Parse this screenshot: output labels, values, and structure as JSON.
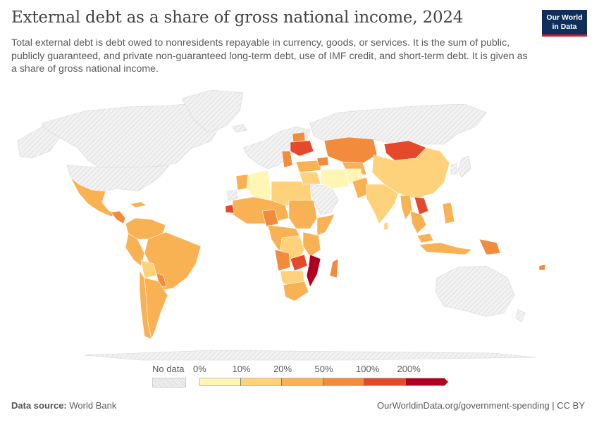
{
  "header": {
    "title": "External debt as a share of gross national income, 2024",
    "subtitle": "Total external debt is debt owed to nonresidents repayable in currency, goods, or services. It is the sum of public, publicly guaranteed, and private non-guaranteed long-term debt, use of IMF credit, and short-term debt. It is given as a share of gross national income."
  },
  "logo": {
    "line1": "Our World",
    "line2": "in Data"
  },
  "legend": {
    "no_data_label": "No data",
    "bins": [
      {
        "label": "0%",
        "color": "#fff5b4"
      },
      {
        "label": "10%",
        "color": "#fdd27a"
      },
      {
        "label": "20%",
        "color": "#f9b253"
      },
      {
        "label": "50%",
        "color": "#f38b3c"
      },
      {
        "label": "100%",
        "color": "#e5492b"
      },
      {
        "label": "200%",
        "color": "#b1001f"
      }
    ]
  },
  "colors": {
    "no_data": "#e6e6e6",
    "bin_0_10": "#fff5b4",
    "bin_10_20": "#fdd27a",
    "bin_20_50": "#f9b253",
    "bin_50_100": "#f38b3c",
    "bin_100_200": "#e5492b",
    "bin_200_plus": "#b1001f"
  },
  "footer": {
    "source_label": "Data source:",
    "source_value": "World Bank",
    "url": "OurWorldinData.org/government-spending | CC BY"
  }
}
